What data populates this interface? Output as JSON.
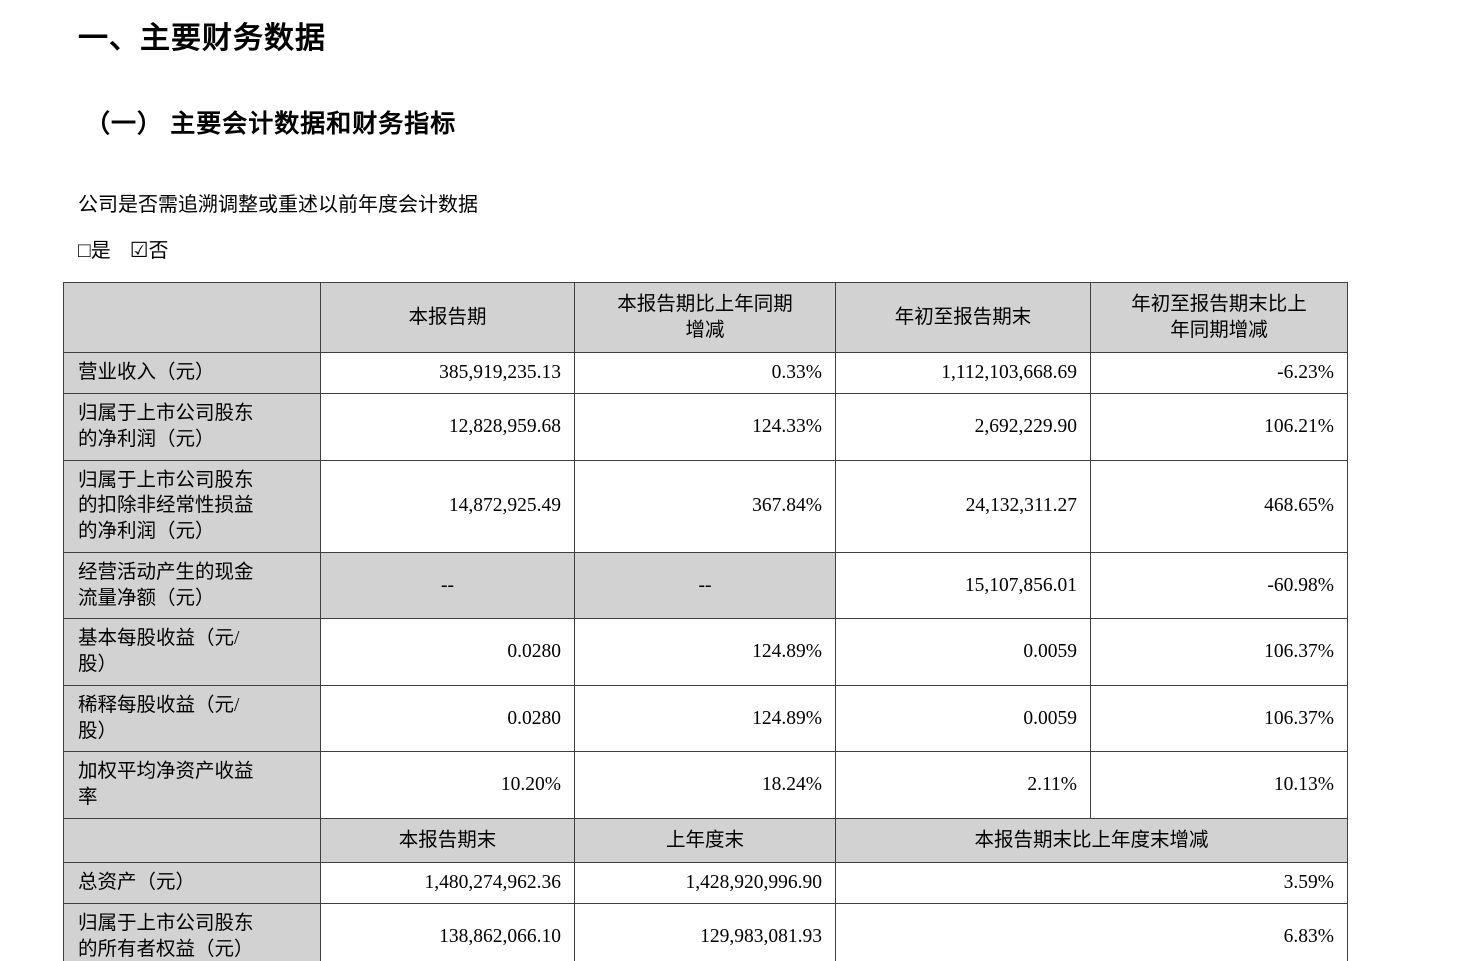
{
  "page": {
    "section_title": "一、主要财务数据",
    "subsection_title": "（一） 主要会计数据和财务指标",
    "question": "公司是否需追溯调整或重述以前年度会计数据",
    "checkbox_yes_symbol": "□",
    "checkbox_yes_label": "是",
    "checkbox_no_symbol": "☑",
    "checkbox_no_label": "否"
  },
  "table": {
    "header1": {
      "col1": "",
      "col2": "本报告期",
      "col3": "本报告期比上年同期\n增减",
      "col4": "年初至报告期末",
      "col5": "年初至报告期末比上\n年同期增减"
    },
    "rows": [
      {
        "label": "营业收入（元）",
        "v1": "385,919,235.13",
        "v2": "0.33%",
        "v3": "1,112,103,668.69",
        "v4": "-6.23%"
      },
      {
        "label": "归属于上市公司股东\n的净利润（元）",
        "v1": "12,828,959.68",
        "v2": "124.33%",
        "v3": "2,692,229.90",
        "v4": "106.21%"
      },
      {
        "label": "归属于上市公司股东\n的扣除非经常性损益\n的净利润（元）",
        "v1": "14,872,925.49",
        "v2": "367.84%",
        "v3": "24,132,311.27",
        "v4": "468.65%"
      },
      {
        "label": "经营活动产生的现金\n流量净额（元）",
        "v1": "--",
        "v2": "--",
        "v3": "15,107,856.01",
        "v4": "-60.98%"
      },
      {
        "label": "基本每股收益（元/\n股）",
        "v1": "0.0280",
        "v2": "124.89%",
        "v3": "0.0059",
        "v4": "106.37%"
      },
      {
        "label": "稀释每股收益（元/\n股）",
        "v1": "0.0280",
        "v2": "124.89%",
        "v3": "0.0059",
        "v4": "106.37%"
      },
      {
        "label": "加权平均净资产收益\n率",
        "v1": "10.20%",
        "v2": "18.24%",
        "v3": "2.11%",
        "v4": "10.13%"
      }
    ],
    "header2": {
      "col1": "",
      "col2": "本报告期末",
      "col3": "上年度末",
      "col45": "本报告期末比上年度末增减"
    },
    "rows2": [
      {
        "label": "总资产（元）",
        "v1": "1,480,274,962.36",
        "v2": "1,428,920,996.90",
        "v34": "3.59%"
      },
      {
        "label": "归属于上市公司股东\n的所有者权益（元）",
        "v1": "138,862,066.10",
        "v2": "129,983,081.93",
        "v34": "6.83%"
      }
    ]
  },
  "colors": {
    "shaded_cell_bg": "#d2d2d2",
    "border": "#3f3f3f",
    "text": "#000000"
  }
}
